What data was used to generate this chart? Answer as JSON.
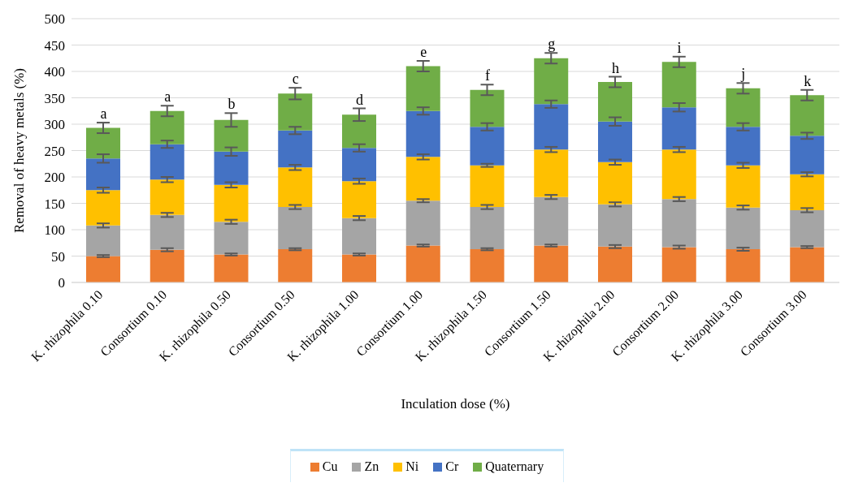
{
  "chart_data": {
    "type": "bar",
    "stacked": true,
    "xlabel": "Inculation dose (%)",
    "ylabel": "Removal of heavy metals (%)",
    "categories": [
      "K. rhizophila 0.10",
      "Consortium 0.10",
      "K. rhizophila 0.50",
      "Consortium 0.50",
      "K. rhizophila 1.00",
      "Consortium 1.00",
      "K. rhizophila 1.50",
      "Consortium 1.50",
      "K. rhizophila 2.00",
      "Consortium 2.00",
      "K. rhizophila 3.00",
      "Consortium 3.00"
    ],
    "series": [
      {
        "name": "Cu",
        "color": "#ed7d31",
        "values": [
          50,
          62,
          53,
          63,
          53,
          70,
          63,
          70,
          68,
          67,
          63,
          67
        ],
        "errors": [
          2,
          3,
          2,
          2,
          2,
          2,
          2,
          2,
          3,
          3,
          3,
          2
        ]
      },
      {
        "name": "Zn",
        "color": "#a5a5a5",
        "values": [
          58,
          66,
          62,
          80,
          69,
          85,
          80,
          92,
          80,
          91,
          79,
          70
        ],
        "errors": [
          4,
          4,
          4,
          4,
          4,
          3,
          4,
          4,
          4,
          4,
          4,
          4
        ]
      },
      {
        "name": "Ni",
        "color": "#ffc000",
        "values": [
          67,
          67,
          70,
          75,
          70,
          83,
          79,
          90,
          80,
          94,
          80,
          68
        ],
        "errors": [
          5,
          5,
          5,
          5,
          5,
          5,
          3,
          5,
          5,
          5,
          5,
          4
        ]
      },
      {
        "name": "Cr",
        "color": "#4472c4",
        "values": [
          60,
          67,
          63,
          70,
          63,
          87,
          73,
          86,
          77,
          80,
          73,
          73
        ],
        "errors": [
          8,
          7,
          8,
          7,
          7,
          7,
          7,
          7,
          8,
          8,
          7,
          6
        ]
      },
      {
        "name": "Quaternary",
        "color": "#70ad47",
        "values": [
          58,
          63,
          60,
          70,
          63,
          85,
          70,
          87,
          75,
          86,
          73,
          77
        ],
        "errors": [
          10,
          10,
          13,
          11,
          12,
          10,
          10,
          10,
          10,
          10,
          10,
          10
        ]
      }
    ],
    "ylim": [
      0,
      500
    ],
    "yticks": [
      0,
      50,
      100,
      150,
      200,
      250,
      300,
      350,
      400,
      450,
      500
    ],
    "grid": "y",
    "legend": "bottom",
    "annotations": [
      {
        "text": "a",
        "x": "K. rhizophila 0.10",
        "y": 303
      },
      {
        "text": "a",
        "x": "Consortium 0.10",
        "y": 335
      },
      {
        "text": "b",
        "x": "K. rhizophila 0.50",
        "y": 321
      },
      {
        "text": "c",
        "x": "Consortium 0.50",
        "y": 369
      },
      {
        "text": "d",
        "x": "K. rhizophila 1.00",
        "y": 330
      },
      {
        "text": "e",
        "x": "Consortium 1.00",
        "y": 420
      },
      {
        "text": "f",
        "x": "K. rhizophila 1.50",
        "y": 375
      },
      {
        "text": "g",
        "x": "Consortium 1.50",
        "y": 435
      },
      {
        "text": "h",
        "x": "K. rhizophila 2.00",
        "y": 390
      },
      {
        "text": "i",
        "x": "Consortium 2.00",
        "y": 428
      },
      {
        "text": "j",
        "x": "K. rhizophila 3.00",
        "y": 378
      },
      {
        "text": "k",
        "x": "Consortium 3.00",
        "y": 365
      }
    ]
  }
}
